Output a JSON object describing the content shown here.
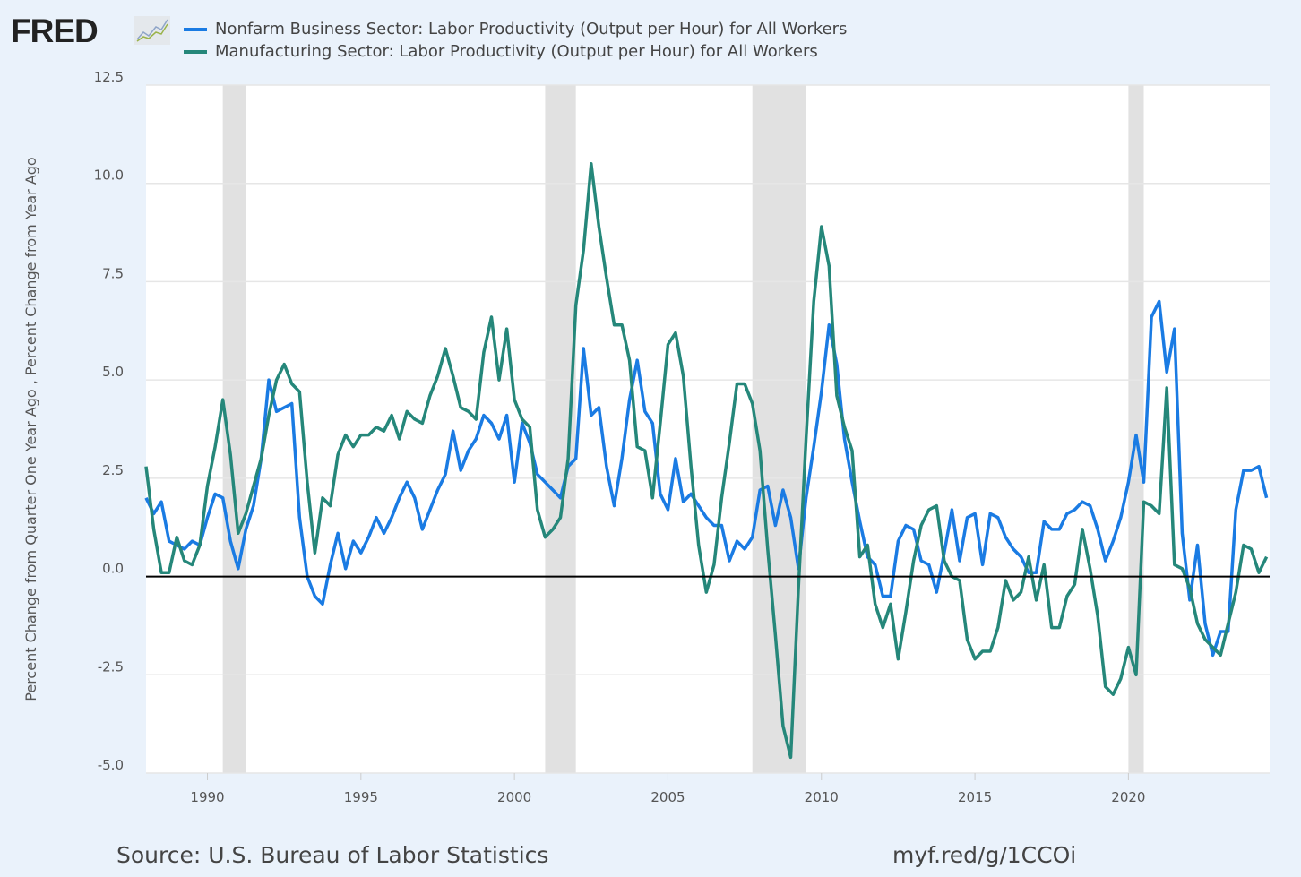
{
  "header": {
    "logo_text": "FRED",
    "logo_icon": "line-chart-icon"
  },
  "footer": {
    "source": "Source: U.S. Bureau of Labor Statistics",
    "short_url": "myf.red/g/1CCOi"
  },
  "chart_data": {
    "type": "line",
    "title": "",
    "xlabel": "",
    "ylabel": "Percent Change from Quarter One Year Ago , Percent Change from Year Ago",
    "x_start": "1988-Q1",
    "frequency": "quarterly",
    "xlim": [
      1988,
      2024.6
    ],
    "ylim": [
      -5,
      12.5
    ],
    "x_ticks": [
      "1990",
      "1995",
      "2000",
      "2005",
      "2010",
      "2015",
      "2020"
    ],
    "y_ticks": [
      "12.5",
      "10.0",
      "7.5",
      "5.0",
      "2.5",
      "0.0",
      "-2.5",
      "-5.0"
    ],
    "grid": true,
    "legend_placement": "top",
    "zero_line": true,
    "recessions": [
      [
        "1990-Q3",
        "1991-Q1"
      ],
      [
        "2001-Q1",
        "2001-Q4"
      ],
      [
        "2007-Q4",
        "2009-Q2"
      ],
      [
        "2020-Q1",
        "2020-Q2"
      ]
    ],
    "recession_color": "#e1e1e1",
    "series": [
      {
        "name": "Nonfarm Business Sector: Labor Productivity (Output per Hour) for All Workers",
        "color": "#1a7be3",
        "values": [
          2.0,
          1.6,
          1.9,
          0.9,
          0.8,
          0.7,
          0.9,
          0.8,
          1.5,
          2.1,
          2.0,
          0.9,
          0.2,
          1.2,
          1.8,
          3.0,
          5.0,
          4.2,
          4.3,
          4.4,
          1.5,
          0.0,
          -0.5,
          -0.7,
          0.3,
          1.1,
          0.2,
          0.9,
          0.6,
          1.0,
          1.5,
          1.1,
          1.5,
          2.0,
          2.4,
          2.0,
          1.2,
          1.7,
          2.2,
          2.6,
          3.7,
          2.7,
          3.2,
          3.5,
          4.1,
          3.9,
          3.5,
          4.1,
          2.4,
          3.9,
          3.4,
          2.6,
          2.4,
          2.2,
          2.0,
          2.8,
          3.0,
          5.8,
          4.1,
          4.3,
          2.8,
          1.8,
          3.0,
          4.5,
          5.5,
          4.2,
          3.9,
          2.1,
          1.7,
          3.0,
          1.9,
          2.1,
          1.8,
          1.5,
          1.3,
          1.3,
          0.4,
          0.9,
          0.7,
          1.0,
          2.2,
          2.3,
          1.3,
          2.2,
          1.5,
          0.2,
          2.0,
          3.3,
          4.7,
          6.4,
          5.4,
          3.5,
          2.4,
          1.4,
          0.5,
          0.3,
          -0.5,
          -0.5,
          0.9,
          1.3,
          1.2,
          0.4,
          0.3,
          -0.4,
          0.6,
          1.7,
          0.4,
          1.5,
          1.6,
          0.3,
          1.6,
          1.5,
          1.0,
          0.7,
          0.5,
          0.1,
          0.1,
          1.4,
          1.2,
          1.2,
          1.6,
          1.7,
          1.9,
          1.8,
          1.2,
          0.4,
          0.9,
          1.5,
          2.4,
          3.6,
          2.4,
          6.6,
          7.0,
          5.2,
          6.3,
          1.1,
          -0.6,
          0.8,
          -1.2,
          -2.0,
          -1.4,
          -1.4,
          1.7,
          2.7,
          2.7,
          2.8,
          2.0
        ]
      },
      {
        "name": "Manufacturing Sector: Labor Productivity (Output per Hour) for All Workers",
        "color": "#25877a",
        "values": [
          2.8,
          1.2,
          0.1,
          0.1,
          1.0,
          0.4,
          0.3,
          0.8,
          2.3,
          3.3,
          4.5,
          3.1,
          1.1,
          1.6,
          2.3,
          3.0,
          4.1,
          5.0,
          5.4,
          4.9,
          4.7,
          2.4,
          0.6,
          2.0,
          1.8,
          3.1,
          3.6,
          3.3,
          3.6,
          3.6,
          3.8,
          3.7,
          4.1,
          3.5,
          4.2,
          4.0,
          3.9,
          4.6,
          5.1,
          5.8,
          5.1,
          4.3,
          4.2,
          4.0,
          5.7,
          6.6,
          5.0,
          6.3,
          4.5,
          4.0,
          3.8,
          1.7,
          1.0,
          1.2,
          1.5,
          3.0,
          6.9,
          8.3,
          10.5,
          8.9,
          7.6,
          6.4,
          6.4,
          5.5,
          3.3,
          3.2,
          2.0,
          3.9,
          5.9,
          6.2,
          5.1,
          2.8,
          0.8,
          -0.4,
          0.3,
          2.0,
          3.4,
          4.9,
          4.9,
          4.4,
          3.2,
          0.7,
          -1.5,
          -3.8,
          -4.6,
          -0.3,
          3.5,
          7.0,
          8.9,
          7.9,
          4.6,
          3.8,
          3.2,
          0.5,
          0.8,
          -0.7,
          -1.3,
          -0.7,
          -2.1,
          -0.9,
          0.4,
          1.3,
          1.7,
          1.8,
          0.4,
          0.0,
          -0.1,
          -1.6,
          -2.1,
          -1.9,
          -1.9,
          -1.3,
          -0.1,
          -0.6,
          -0.4,
          0.5,
          -0.6,
          0.3,
          -1.3,
          -1.3,
          -0.5,
          -0.2,
          1.2,
          0.2,
          -1.0,
          -2.8,
          -3.0,
          -2.6,
          -1.8,
          -2.5,
          1.9,
          1.8,
          1.6,
          4.8,
          0.3,
          0.2,
          -0.3,
          -1.2,
          -1.6,
          -1.8,
          -2.0,
          -1.2,
          -0.4,
          0.8,
          0.7,
          0.1,
          0.5
        ]
      }
    ]
  }
}
